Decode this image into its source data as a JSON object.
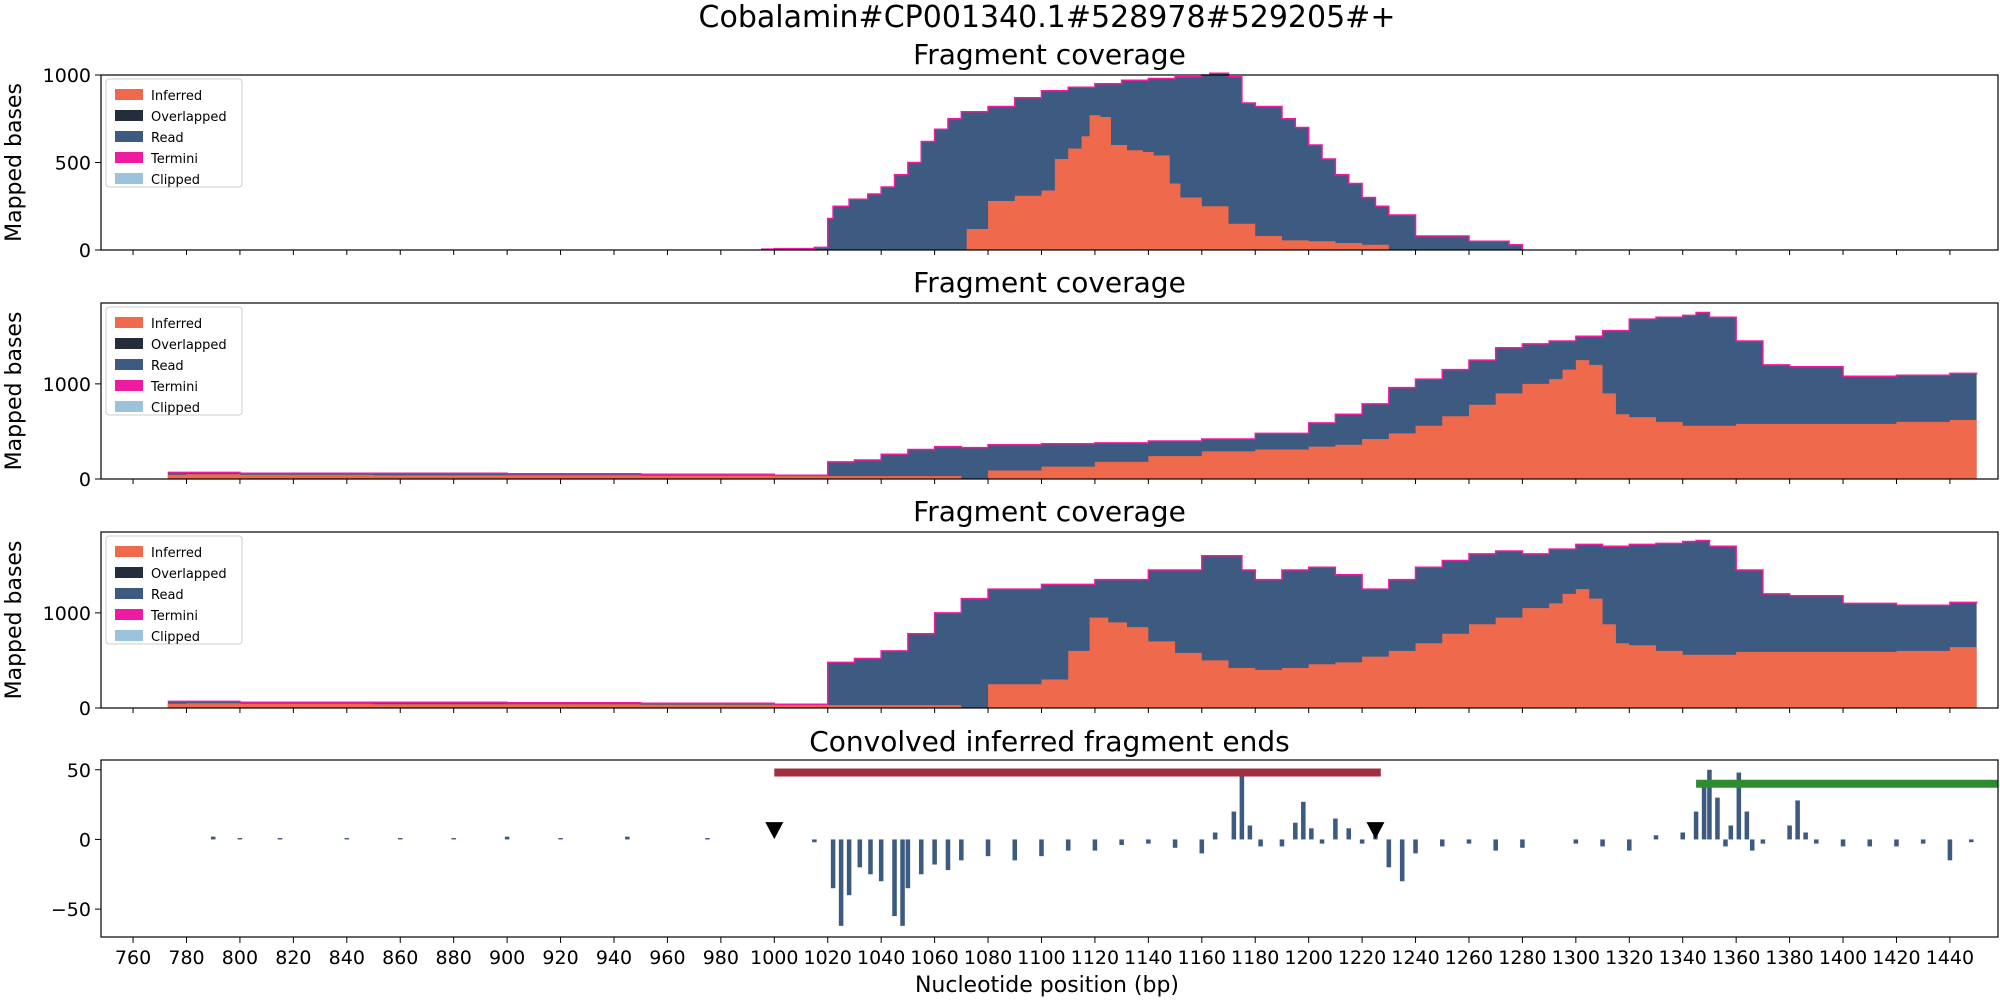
{
  "figure": {
    "suptitle": "Cobalamin#CP001340.1#528978#529205#+",
    "xlabel": "Nucleotide position (bp)"
  },
  "chart_data": [
    {
      "type": "area",
      "title": "Fragment coverage",
      "ylabel": "Mapped bases",
      "xlim": [
        748,
        1458
      ],
      "ylim": [
        0,
        1000
      ],
      "yticks": [
        0,
        500,
        1000
      ],
      "legend": {
        "placement": "top-left",
        "entries": [
          "Inferred",
          "Overlapped",
          "Read",
          "Termini",
          "Clipped"
        ]
      },
      "series": [
        {
          "name": "Inferred",
          "color": "#ef6a4c",
          "x": [
            1070,
            1072,
            1080,
            1090,
            1100,
            1105,
            1110,
            1115,
            1118,
            1122,
            1126,
            1132,
            1138,
            1142,
            1148,
            1152,
            1160,
            1170,
            1180,
            1190,
            1200,
            1210,
            1220,
            1230
          ],
          "y": [
            0,
            120,
            280,
            310,
            340,
            520,
            580,
            650,
            770,
            760,
            600,
            570,
            560,
            540,
            380,
            300,
            250,
            150,
            80,
            55,
            50,
            40,
            30,
            0
          ]
        },
        {
          "name": "Read",
          "color": "#3d5a80",
          "x": [
            995,
            1000,
            1015,
            1020,
            1022,
            1028,
            1035,
            1040,
            1045,
            1050,
            1055,
            1060,
            1065,
            1070,
            1080,
            1090,
            1100,
            1110,
            1120,
            1130,
            1140,
            1150,
            1160,
            1163,
            1168,
            1170,
            1175,
            1180,
            1190,
            1195,
            1200,
            1205,
            1210,
            1215,
            1220,
            1225,
            1230,
            1240,
            1260,
            1275,
            1280
          ],
          "y": [
            5,
            8,
            15,
            180,
            250,
            290,
            320,
            360,
            430,
            500,
            620,
            690,
            750,
            790,
            820,
            870,
            910,
            930,
            950,
            970,
            980,
            990,
            1000,
            1010,
            1010,
            990,
            840,
            820,
            750,
            700,
            600,
            520,
            430,
            380,
            300,
            250,
            200,
            80,
            50,
            30,
            0
          ]
        }
      ]
    },
    {
      "type": "area",
      "title": "Fragment coverage",
      "ylabel": "Mapped bases",
      "xlim": [
        748,
        1458
      ],
      "ylim": [
        0,
        1850
      ],
      "yticks": [
        0,
        1000
      ],
      "legend": {
        "placement": "top-left",
        "entries": [
          "Inferred",
          "Overlapped",
          "Read",
          "Termini",
          "Clipped"
        ]
      },
      "series": [
        {
          "name": "Inferred",
          "color": "#ef6a4c",
          "x": [
            773,
            780,
            800,
            850,
            900,
            950,
            1000,
            1020,
            1070,
            1080,
            1100,
            1120,
            1140,
            1160,
            1180,
            1200,
            1210,
            1220,
            1230,
            1240,
            1250,
            1260,
            1270,
            1280,
            1290,
            1295,
            1300,
            1305,
            1310,
            1315,
            1320,
            1330,
            1340,
            1350,
            1360,
            1380,
            1400,
            1420,
            1440,
            1450
          ],
          "y": [
            45,
            50,
            45,
            40,
            40,
            35,
            30,
            30,
            0,
            90,
            130,
            180,
            240,
            290,
            310,
            340,
            360,
            420,
            480,
            560,
            660,
            780,
            900,
            1000,
            1050,
            1150,
            1250,
            1200,
            900,
            680,
            650,
            600,
            560,
            560,
            580,
            580,
            580,
            600,
            620,
            620
          ]
        },
        {
          "name": "Read",
          "color": "#3d5a80",
          "x": [
            773,
            780,
            800,
            850,
            900,
            950,
            1000,
            1020,
            1030,
            1040,
            1050,
            1060,
            1070,
            1080,
            1100,
            1120,
            1140,
            1160,
            1180,
            1200,
            1210,
            1220,
            1230,
            1240,
            1250,
            1260,
            1270,
            1280,
            1290,
            1300,
            1310,
            1320,
            1330,
            1340,
            1345,
            1350,
            1360,
            1370,
            1380,
            1400,
            1420,
            1440,
            1450
          ],
          "y": [
            70,
            70,
            60,
            60,
            55,
            50,
            40,
            180,
            200,
            260,
            310,
            340,
            330,
            360,
            370,
            380,
            400,
            420,
            480,
            590,
            680,
            790,
            960,
            1050,
            1150,
            1250,
            1380,
            1420,
            1450,
            1500,
            1560,
            1680,
            1700,
            1720,
            1750,
            1700,
            1450,
            1200,
            1180,
            1080,
            1090,
            1110,
            1100
          ]
        }
      ]
    },
    {
      "type": "area",
      "title": "Fragment coverage",
      "ylabel": "Mapped bases",
      "xlim": [
        748,
        1458
      ],
      "ylim": [
        0,
        1850
      ],
      "yticks": [
        0,
        1000
      ],
      "legend": {
        "placement": "top-left",
        "entries": [
          "Inferred",
          "Overlapped",
          "Read",
          "Termini",
          "Clipped"
        ]
      },
      "series": [
        {
          "name": "Inferred",
          "color": "#ef6a4c",
          "x": [
            773,
            780,
            800,
            850,
            900,
            950,
            1000,
            1020,
            1070,
            1080,
            1100,
            1110,
            1118,
            1125,
            1132,
            1140,
            1150,
            1160,
            1170,
            1180,
            1190,
            1200,
            1210,
            1220,
            1230,
            1240,
            1250,
            1260,
            1270,
            1280,
            1290,
            1295,
            1300,
            1305,
            1310,
            1315,
            1320,
            1330,
            1340,
            1350,
            1360,
            1380,
            1400,
            1420,
            1440,
            1450
          ],
          "y": [
            45,
            50,
            45,
            40,
            40,
            35,
            30,
            30,
            0,
            250,
            300,
            600,
            950,
            900,
            850,
            700,
            580,
            500,
            420,
            400,
            420,
            460,
            480,
            540,
            600,
            680,
            780,
            880,
            950,
            1050,
            1100,
            1200,
            1250,
            1150,
            880,
            680,
            660,
            600,
            560,
            560,
            590,
            590,
            590,
            600,
            640,
            640
          ]
        },
        {
          "name": "Read",
          "color": "#3d5a80",
          "x": [
            773,
            780,
            800,
            850,
            900,
            950,
            1000,
            1020,
            1030,
            1040,
            1050,
            1060,
            1070,
            1080,
            1100,
            1120,
            1140,
            1160,
            1170,
            1175,
            1180,
            1190,
            1200,
            1210,
            1220,
            1230,
            1240,
            1250,
            1260,
            1270,
            1280,
            1290,
            1300,
            1310,
            1320,
            1330,
            1340,
            1345,
            1350,
            1360,
            1370,
            1380,
            1400,
            1420,
            1440,
            1450
          ],
          "y": [
            70,
            70,
            60,
            60,
            55,
            50,
            40,
            480,
            520,
            600,
            780,
            1000,
            1150,
            1250,
            1300,
            1350,
            1450,
            1600,
            1600,
            1450,
            1350,
            1450,
            1480,
            1400,
            1250,
            1350,
            1480,
            1550,
            1620,
            1650,
            1620,
            1670,
            1720,
            1700,
            1720,
            1730,
            1750,
            1760,
            1700,
            1450,
            1200,
            1180,
            1100,
            1080,
            1110,
            1100
          ]
        }
      ]
    },
    {
      "type": "bar",
      "title": "Convolved inferred fragment ends",
      "xlim": [
        748,
        1458
      ],
      "ylim": [
        -70,
        57
      ],
      "yticks": [
        -50,
        0,
        50
      ],
      "xticks": [
        760,
        780,
        800,
        820,
        840,
        860,
        880,
        900,
        920,
        940,
        960,
        980,
        1000,
        1020,
        1040,
        1060,
        1080,
        1100,
        1120,
        1140,
        1160,
        1180,
        1200,
        1220,
        1240,
        1260,
        1280,
        1300,
        1320,
        1340,
        1360,
        1380,
        1400,
        1420,
        1440
      ],
      "series": [
        {
          "name": "Convolved",
          "color": "#3d5a80",
          "x": [
            790,
            800,
            815,
            840,
            860,
            880,
            900,
            920,
            945,
            975,
            1015,
            1022,
            1025,
            1028,
            1032,
            1036,
            1040,
            1045,
            1048,
            1050,
            1055,
            1060,
            1065,
            1070,
            1080,
            1090,
            1100,
            1110,
            1120,
            1130,
            1140,
            1150,
            1160,
            1165,
            1172,
            1175,
            1178,
            1182,
            1190,
            1195,
            1198,
            1201,
            1205,
            1210,
            1215,
            1220,
            1225,
            1230,
            1235,
            1240,
            1250,
            1260,
            1270,
            1280,
            1300,
            1310,
            1320,
            1330,
            1340,
            1345,
            1348,
            1350,
            1353,
            1356,
            1358,
            1361,
            1364,
            1366,
            1370,
            1380,
            1383,
            1386,
            1390,
            1400,
            1410,
            1420,
            1430,
            1440,
            1448
          ],
          "y": [
            2,
            1,
            1,
            1,
            1,
            1,
            2,
            1,
            2,
            1,
            -2,
            -35,
            -62,
            -40,
            -20,
            -25,
            -30,
            -55,
            -62,
            -35,
            -25,
            -18,
            -22,
            -15,
            -12,
            -15,
            -12,
            -8,
            -8,
            -4,
            -3,
            -6,
            -10,
            5,
            20,
            46,
            10,
            -5,
            -5,
            12,
            27,
            8,
            -3,
            15,
            8,
            -3,
            5,
            -20,
            -30,
            -10,
            -5,
            -3,
            -8,
            -6,
            -3,
            -5,
            -8,
            3,
            5,
            20,
            42,
            50,
            30,
            -5,
            10,
            48,
            20,
            -8,
            -3,
            10,
            28,
            5,
            -3,
            -5,
            -5,
            -5,
            -3,
            -15,
            -2
          ]
        }
      ],
      "intervals": [
        {
          "start": 1000,
          "end": 1227,
          "y": 48,
          "color": "#a03040"
        },
        {
          "start": 1345,
          "end": 1458,
          "y": 40,
          "color": "#2e8b2e"
        }
      ],
      "markers": [
        {
          "x": 1000,
          "y": 6,
          "shape": "triangle-down",
          "color": "#000000"
        },
        {
          "x": 1225,
          "y": 6,
          "shape": "triangle-down",
          "color": "#000000"
        }
      ]
    }
  ],
  "legend_colors": {
    "Inferred": "#ef6a4c",
    "Overlapped": "#252d3d",
    "Read": "#3d5a80",
    "Termini": "#ee1aa0",
    "Clipped": "#9bc3dc"
  }
}
